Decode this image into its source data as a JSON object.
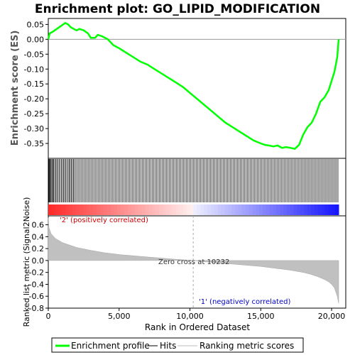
{
  "chart_data": {
    "type": "line",
    "title": "Enrichment plot: GO_LIPID_MODIFICATION",
    "top_panel": {
      "ylabel": "Enrichment score (ES)",
      "ylim": [
        -0.4,
        0.07
      ],
      "yticks": [
        "0.05",
        "0.00",
        "-0.05",
        "-0.10",
        "-0.15",
        "-0.20",
        "-0.25",
        "-0.30",
        "-0.35"
      ],
      "ytick_values": [
        0.05,
        0.0,
        -0.05,
        -0.1,
        -0.15,
        -0.2,
        -0.25,
        -0.3,
        -0.35
      ],
      "series": [
        {
          "name": "Enrichment profile",
          "color": "#00ff00",
          "x": [
            0,
            100,
            300,
            600,
            900,
            1200,
            1400,
            1600,
            1800,
            2000,
            2200,
            2500,
            2800,
            3000,
            3300,
            3500,
            3800,
            4200,
            4600,
            5000,
            5500,
            6000,
            6500,
            7000,
            7500,
            8000,
            8500,
            9000,
            9500,
            10000,
            10500,
            11000,
            11500,
            12000,
            12500,
            13000,
            13500,
            14000,
            14500,
            15000,
            15300,
            15600,
            15900,
            16200,
            16500,
            16800,
            17100,
            17400,
            17700,
            18000,
            18300,
            18600,
            18900,
            19200,
            19500,
            19800,
            20000,
            20200,
            20400,
            20500
          ],
          "y": [
            0.0,
            0.02,
            0.025,
            0.035,
            0.045,
            0.055,
            0.05,
            0.04,
            0.035,
            0.03,
            0.035,
            0.03,
            0.02,
            0.005,
            0.005,
            0.015,
            0.01,
            0.0,
            -0.02,
            -0.03,
            -0.045,
            -0.06,
            -0.075,
            -0.085,
            -0.1,
            -0.115,
            -0.13,
            -0.145,
            -0.16,
            -0.18,
            -0.2,
            -0.22,
            -0.24,
            -0.26,
            -0.28,
            -0.295,
            -0.31,
            -0.325,
            -0.34,
            -0.35,
            -0.355,
            -0.357,
            -0.36,
            -0.357,
            -0.365,
            -0.362,
            -0.365,
            -0.368,
            -0.355,
            -0.32,
            -0.295,
            -0.28,
            -0.25,
            -0.21,
            -0.195,
            -0.17,
            -0.14,
            -0.11,
            -0.06,
            0.0
          ]
        }
      ]
    },
    "hits_panel": {
      "name": "Hits",
      "ranks": [
        30,
        60,
        100,
        150,
        200,
        260,
        320,
        380,
        450,
        520,
        600,
        680,
        760,
        840,
        920,
        1000,
        1080,
        1150,
        1230,
        1310,
        1400,
        1480,
        1550,
        1620,
        1700,
        1780,
        1850,
        1950,
        2050,
        2150,
        2250,
        2350,
        2450,
        2550,
        2650,
        2750,
        2850,
        2950,
        3050,
        3150,
        3250,
        3350,
        3450,
        3550,
        3650,
        3750,
        3850,
        3950,
        4050,
        4150,
        4250,
        4350,
        4450,
        4550,
        4650,
        4750,
        4850,
        4950,
        5050,
        5150,
        5250,
        5350,
        5450,
        5550,
        5650,
        5750,
        5850,
        5950,
        6050,
        6150,
        6250,
        6350,
        6450,
        6550,
        6650,
        6750,
        6850,
        6950,
        7050,
        7150,
        7250,
        7350,
        7450,
        7550,
        7650,
        7750,
        7850,
        7950,
        8050,
        8150,
        8250,
        8350,
        8450,
        8550,
        8650,
        8750,
        8850,
        8950,
        9050,
        9150,
        9250,
        9350,
        9450,
        9550,
        9650,
        9750,
        9850,
        9950,
        10050,
        10150,
        10250,
        10350,
        10450,
        10550,
        10650,
        10750,
        10850,
        10950,
        11050,
        11150,
        11250,
        11350,
        11450,
        11550,
        11650,
        11750,
        11850,
        11950,
        12050,
        12150,
        12250,
        12350,
        12450,
        12550,
        12650,
        12750,
        12850,
        12950,
        13050,
        13150,
        13250,
        13350,
        13450,
        13550,
        13650,
        13750,
        13850,
        13950,
        14050,
        14150,
        14250,
        14350,
        14450,
        14550,
        14650,
        14750,
        14850,
        14950,
        15050,
        15150,
        15250,
        15350,
        15450,
        15550,
        15650,
        15750,
        15850,
        15950,
        16050,
        16150,
        16250,
        16350,
        16450,
        16550,
        16650,
        16750,
        16850,
        16950,
        17050,
        17150,
        17250,
        17350,
        17450,
        17550,
        17650,
        17750,
        17850,
        17950,
        18050,
        18150,
        18250,
        18350,
        18450,
        18550,
        18650,
        18750,
        18850,
        18950,
        19050,
        19150,
        19250,
        19350,
        19450,
        19550,
        19650,
        19750,
        19850,
        19950,
        20050,
        20150,
        20250,
        20350,
        20450
      ]
    },
    "bottom_panel": {
      "name": "Ranking metric scores",
      "ylabel": "Ranked list metric (Signal2Noise)",
      "xlabel": "Rank in Ordered Dataset",
      "ylim": [
        -0.8,
        0.75
      ],
      "yticks": [
        "0.6",
        "0.4",
        "0.2",
        "0.0",
        "-0.2",
        "-0.4",
        "-0.6",
        "-0.8"
      ],
      "ytick_values": [
        0.6,
        0.4,
        0.2,
        0.0,
        -0.2,
        -0.4,
        -0.6,
        -0.8
      ],
      "xlim": [
        0,
        21000
      ],
      "xticks": [
        "0",
        "5,000",
        "10,000",
        "15,000",
        "20,000"
      ],
      "xtick_values": [
        0,
        5000,
        10000,
        15000,
        20000
      ],
      "x": [
        0,
        50,
        200,
        500,
        1000,
        2000,
        3000,
        4000,
        5000,
        6000,
        7000,
        8000,
        9000,
        10000,
        10232,
        11000,
        12000,
        13000,
        14000,
        15000,
        16000,
        17000,
        18000,
        18500,
        19000,
        19500,
        19800,
        20000,
        20200,
        20400,
        20500
      ],
      "y": [
        0.72,
        0.55,
        0.45,
        0.37,
        0.3,
        0.22,
        0.17,
        0.13,
        0.1,
        0.08,
        0.06,
        0.04,
        0.02,
        0.005,
        0.0,
        -0.02,
        -0.04,
        -0.06,
        -0.08,
        -0.1,
        -0.13,
        -0.16,
        -0.2,
        -0.23,
        -0.27,
        -0.32,
        -0.36,
        -0.4,
        -0.46,
        -0.6,
        -0.72
      ],
      "annotations": {
        "pos": "'2' (positively correlated)",
        "neg": "'1' (negatively correlated)",
        "zero_cross": "Zero cross at 10232"
      },
      "zero_cross_rank": 10232
    },
    "legend": {
      "items": [
        {
          "label": "Enrichment profile",
          "color": "#00ff00"
        },
        {
          "label": "Hits",
          "color": "#000000"
        },
        {
          "label": "Ranking metric scores",
          "color": "#bbbbbb"
        }
      ]
    },
    "colors": {
      "profile": "#00ff00",
      "pos_annotation": "#cc0000",
      "neg_annotation": "#0000cc",
      "fill": "#c0c0c0"
    }
  }
}
